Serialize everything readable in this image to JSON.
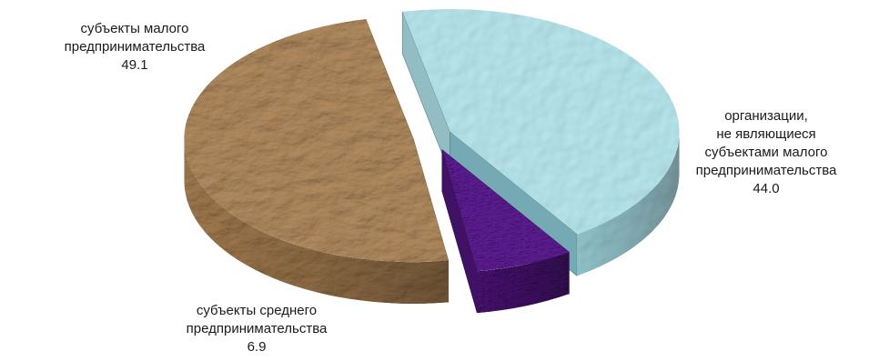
{
  "chart_data": {
    "type": "pie",
    "style": "3d-exploded",
    "slices": [
      {
        "label_lines": [
          "субъекты малого",
          "предпринимательства"
        ],
        "value": 49.1,
        "value_text": "49.1",
        "color": "#b08a5e",
        "side_color": "#8c6a44",
        "texture": "crumpled-paper"
      },
      {
        "label_lines": [
          "организации,",
          "не являющиеся",
          "субъектами малого",
          "предпринимательства"
        ],
        "value": 44.0,
        "value_text": "44.0",
        "color": "#a9dce3",
        "side_color": "#6fa1aa",
        "texture": "water-droplets"
      },
      {
        "label_lines": [
          "субъекты среднего",
          "предпринимательства"
        ],
        "value": 6.9,
        "value_text": "6.9",
        "color": "#5a1c8e",
        "side_color": "#3d1060",
        "texture": "woven"
      }
    ]
  }
}
